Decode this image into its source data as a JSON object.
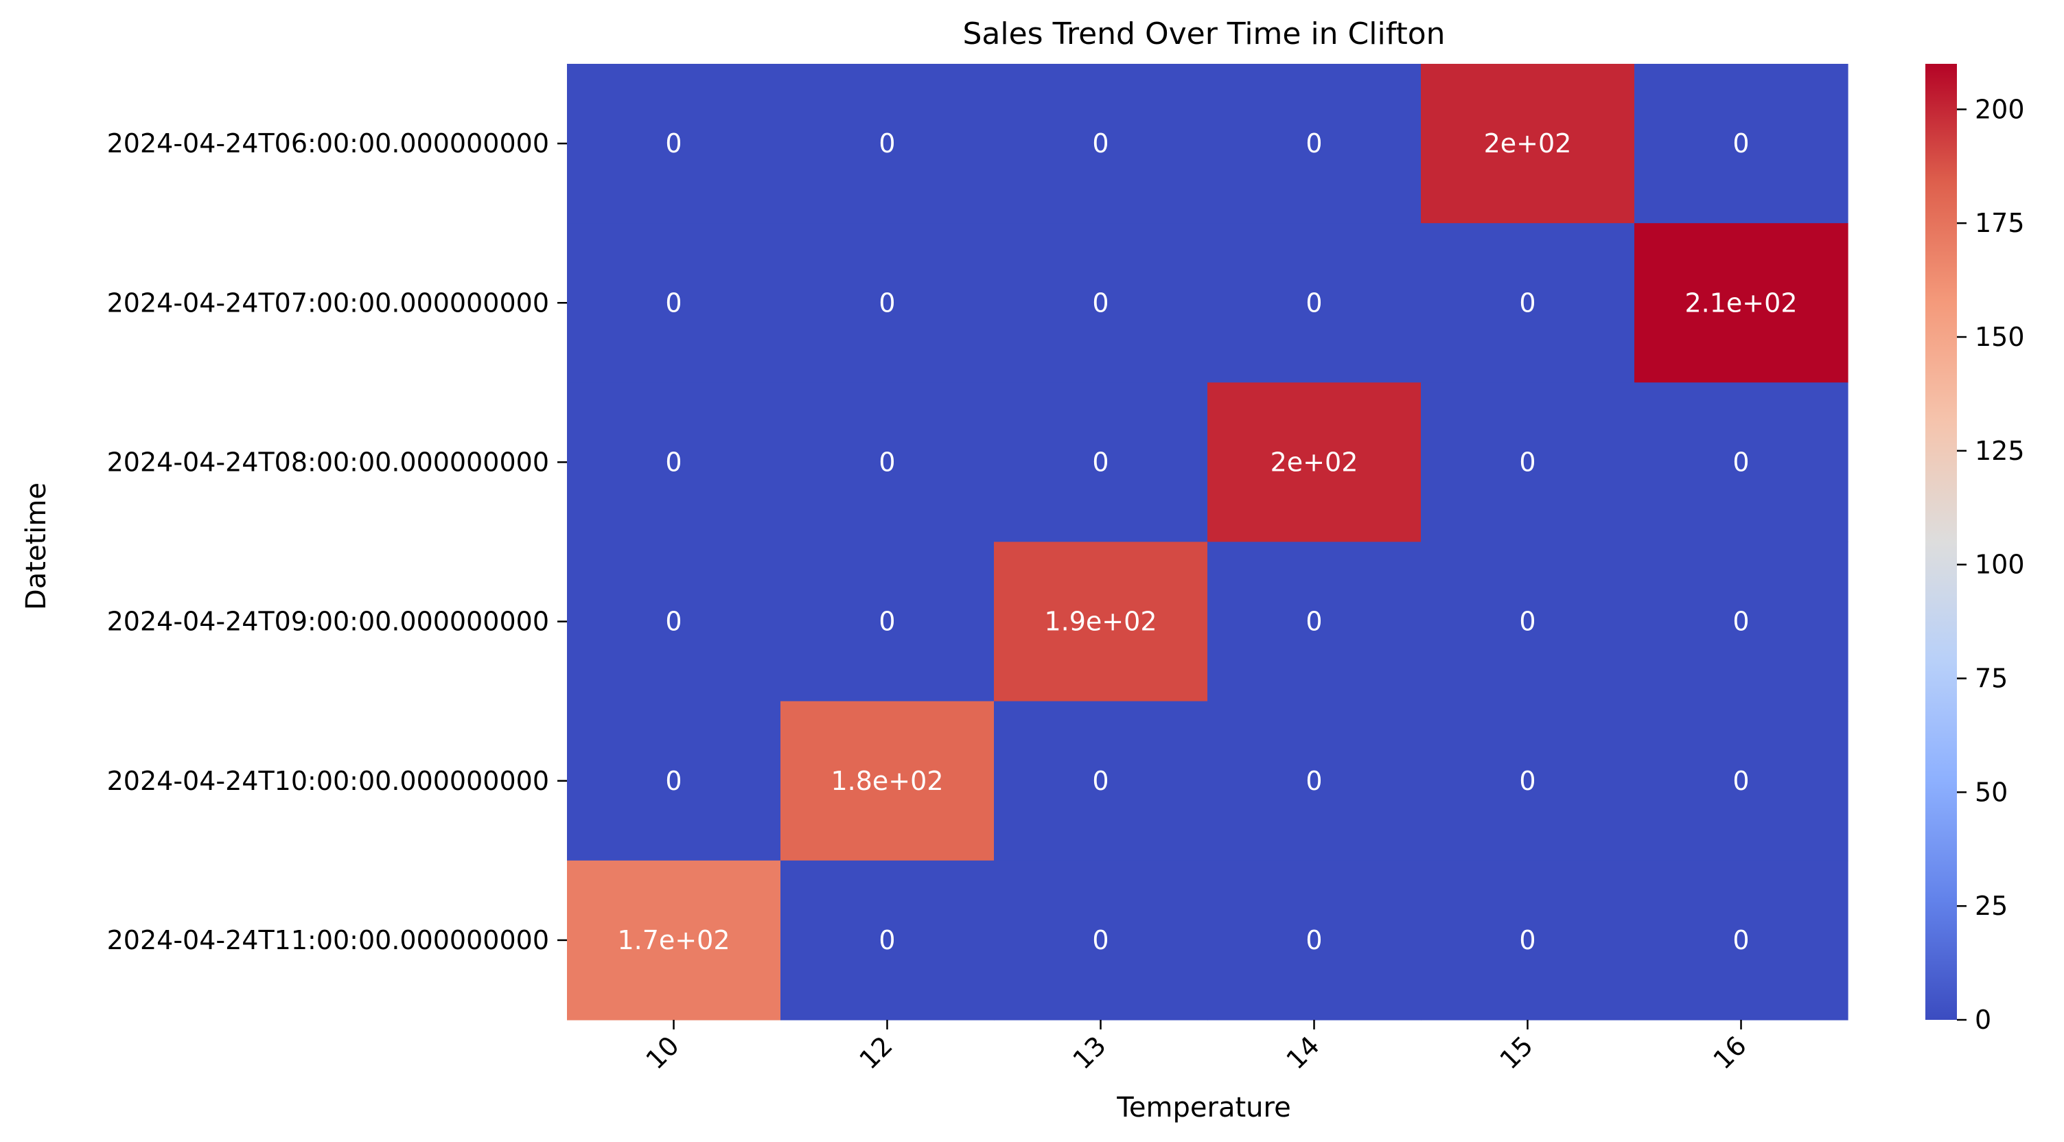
{
  "chart_data": {
    "type": "heatmap",
    "title": "Sales Trend Over Time in Clifton",
    "xlabel": "Temperature",
    "ylabel": "Datetime",
    "x_categories": [
      "10",
      "12",
      "13",
      "14",
      "15",
      "16"
    ],
    "y_categories": [
      "2024-04-24T06:00:00.000000000",
      "2024-04-24T07:00:00.000000000",
      "2024-04-24T08:00:00.000000000",
      "2024-04-24T09:00:00.000000000",
      "2024-04-24T10:00:00.000000000",
      "2024-04-24T11:00:00.000000000"
    ],
    "values": [
      [
        0,
        0,
        0,
        0,
        200,
        0
      ],
      [
        0,
        0,
        0,
        0,
        0,
        210
      ],
      [
        0,
        0,
        0,
        200,
        0,
        0
      ],
      [
        0,
        0,
        190,
        0,
        0,
        0
      ],
      [
        0,
        180,
        0,
        0,
        0,
        0
      ],
      [
        170,
        0,
        0,
        0,
        0,
        0
      ]
    ],
    "annotations": [
      [
        "0",
        "0",
        "0",
        "0",
        "2e+02",
        "0"
      ],
      [
        "0",
        "0",
        "0",
        "0",
        "0",
        "2.1e+02"
      ],
      [
        "0",
        "0",
        "0",
        "2e+02",
        "0",
        "0"
      ],
      [
        "0",
        "0",
        "1.9e+02",
        "0",
        "0",
        "0"
      ],
      [
        "0",
        "1.8e+02",
        "0",
        "0",
        "0",
        "0"
      ],
      [
        "1.7e+02",
        "0",
        "0",
        "0",
        "0",
        "0"
      ]
    ],
    "colorscale": "coolwarm",
    "colorbar": {
      "vmin": 0,
      "vmax": 210,
      "ticks": [
        0,
        25,
        50,
        75,
        100,
        125,
        150,
        175,
        200
      ]
    },
    "x_tick_rotation_deg": 45,
    "grid": false
  }
}
